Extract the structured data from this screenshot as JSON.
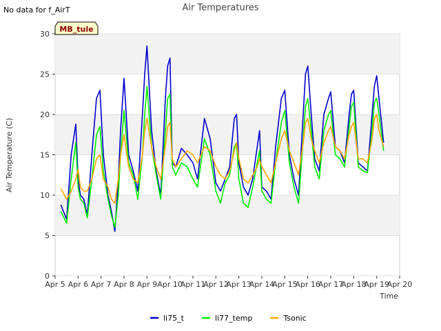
{
  "header": {
    "no_data_text": "No data for f_AirT",
    "badge_label": "MB_tule"
  },
  "chart_data": {
    "type": "line",
    "title": "Air Temperatures",
    "xlabel": "Time",
    "ylabel": "Air Temperature (C)",
    "xlim": [
      5,
      20
    ],
    "ylim": [
      0,
      30
    ],
    "x_ticks": [
      5,
      6,
      7,
      8,
      9,
      10,
      11,
      12,
      13,
      14,
      15,
      16,
      17,
      18,
      19,
      20
    ],
    "x_tick_labels": [
      "Apr 5",
      "Apr 6",
      "Apr 7",
      "Apr 8",
      "Apr 9",
      "Apr 10",
      "Apr 11",
      "Apr 12",
      "Apr 13",
      "Apr 14",
      "Apr 15",
      "Apr 16",
      "Apr 17",
      "Apr 18",
      "Apr 19",
      "Apr 20"
    ],
    "y_ticks": [
      0,
      5,
      10,
      15,
      20,
      25,
      30
    ],
    "y_tick_labels": [
      "0",
      "5",
      "10",
      "15",
      "20",
      "25",
      "30"
    ],
    "grid": "horizontal bands",
    "legend_position": "bottom-center",
    "series": [
      {
        "name": "li75_t",
        "color": "#0000cc",
        "x": [
          5.25,
          5.5,
          5.7,
          5.9,
          6.0,
          6.1,
          6.25,
          6.4,
          6.6,
          6.8,
          6.95,
          7.1,
          7.3,
          7.45,
          7.6,
          7.75,
          7.85,
          8.0,
          8.2,
          8.4,
          8.6,
          8.8,
          8.9,
          9.0,
          9.2,
          9.4,
          9.6,
          9.8,
          9.9,
          10.0,
          10.1,
          10.25,
          10.5,
          10.75,
          11.0,
          11.2,
          11.5,
          11.75,
          12.0,
          12.2,
          12.4,
          12.6,
          12.8,
          12.9,
          13.0,
          13.2,
          13.4,
          13.6,
          13.8,
          13.9,
          14.0,
          14.2,
          14.4,
          14.6,
          14.85,
          15.0,
          15.2,
          15.4,
          15.6,
          15.8,
          15.9,
          16.0,
          16.15,
          16.3,
          16.5,
          16.7,
          16.9,
          17.0,
          17.2,
          17.4,
          17.6,
          17.8,
          17.9,
          18.0,
          18.2,
          18.4,
          18.6,
          18.8,
          18.9,
          19.0,
          19.1,
          19.3
        ],
        "y": [
          8.8,
          7.0,
          15.0,
          18.8,
          12.0,
          10.0,
          9.5,
          7.5,
          15.0,
          22.0,
          23.0,
          15.0,
          10.0,
          8.0,
          5.5,
          12.0,
          18.0,
          24.5,
          15.0,
          13.0,
          10.5,
          20.0,
          25.0,
          28.5,
          18.0,
          13.0,
          10.0,
          22.0,
          26.0,
          27.0,
          14.0,
          13.5,
          15.8,
          15.0,
          14.0,
          12.0,
          19.5,
          17.0,
          11.5,
          10.5,
          12.0,
          13.5,
          19.5,
          20.0,
          14.0,
          11.0,
          10.0,
          12.0,
          16.0,
          18.0,
          11.0,
          10.5,
          9.5,
          16.0,
          22.0,
          23.0,
          15.0,
          12.0,
          10.0,
          20.0,
          25.0,
          26.0,
          20.0,
          14.5,
          13.0,
          20.0,
          22.0,
          22.8,
          16.0,
          15.5,
          14.0,
          20.0,
          22.5,
          23.0,
          14.0,
          13.5,
          13.0,
          20.0,
          23.5,
          24.8,
          22.0,
          16.5
        ]
      },
      {
        "name": "li77_temp",
        "color": "#00ee00",
        "x": [
          5.25,
          5.5,
          5.7,
          5.9,
          6.0,
          6.1,
          6.25,
          6.4,
          6.6,
          6.8,
          6.95,
          7.1,
          7.3,
          7.45,
          7.6,
          7.75,
          7.85,
          8.0,
          8.2,
          8.4,
          8.6,
          8.8,
          8.9,
          9.0,
          9.2,
          9.4,
          9.6,
          9.8,
          9.9,
          10.0,
          10.1,
          10.25,
          10.5,
          10.75,
          11.0,
          11.2,
          11.5,
          11.75,
          12.0,
          12.2,
          12.4,
          12.6,
          12.8,
          12.9,
          13.0,
          13.2,
          13.4,
          13.6,
          13.8,
          13.9,
          14.0,
          14.2,
          14.4,
          14.6,
          14.85,
          15.0,
          15.2,
          15.4,
          15.6,
          15.8,
          15.9,
          16.0,
          16.15,
          16.3,
          16.5,
          16.7,
          16.9,
          17.0,
          17.2,
          17.4,
          17.6,
          17.8,
          17.9,
          18.0,
          18.2,
          18.4,
          18.6,
          18.8,
          18.9,
          19.0,
          19.1,
          19.3
        ],
        "y": [
          8.0,
          6.5,
          12.0,
          16.5,
          11.0,
          9.5,
          9.0,
          7.2,
          12.0,
          17.5,
          18.5,
          13.0,
          9.5,
          7.5,
          6.0,
          10.0,
          15.0,
          20.5,
          14.0,
          12.5,
          9.5,
          15.0,
          20.0,
          23.5,
          16.0,
          12.5,
          9.5,
          18.0,
          22.0,
          22.5,
          13.5,
          12.5,
          14.0,
          13.5,
          12.0,
          11.0,
          17.0,
          15.0,
          10.5,
          9.0,
          11.5,
          12.5,
          16.0,
          16.5,
          12.0,
          9.0,
          8.5,
          11.0,
          14.0,
          15.5,
          10.5,
          9.5,
          9.0,
          14.0,
          19.0,
          20.5,
          14.0,
          11.0,
          9.0,
          17.0,
          21.0,
          22.0,
          18.0,
          13.5,
          12.0,
          18.0,
          20.0,
          20.5,
          15.0,
          14.5,
          13.5,
          18.5,
          21.0,
          21.5,
          13.5,
          13.0,
          12.8,
          18.0,
          21.5,
          22.0,
          20.0,
          15.5
        ]
      },
      {
        "name": "Tsonic",
        "color": "#ffa500",
        "x": [
          5.25,
          5.5,
          5.7,
          5.9,
          6.0,
          6.1,
          6.25,
          6.4,
          6.6,
          6.8,
          6.95,
          7.1,
          7.3,
          7.45,
          7.6,
          7.75,
          7.85,
          8.0,
          8.2,
          8.4,
          8.6,
          8.8,
          8.9,
          9.0,
          9.2,
          9.4,
          9.6,
          9.8,
          9.9,
          10.0,
          10.1,
          10.25,
          10.5,
          10.75,
          11.0,
          11.2,
          11.5,
          11.75,
          12.0,
          12.2,
          12.4,
          12.6,
          12.8,
          12.9,
          13.0,
          13.2,
          13.4,
          13.6,
          13.8,
          13.9,
          14.0,
          14.2,
          14.4,
          14.6,
          14.85,
          15.0,
          15.2,
          15.4,
          15.6,
          15.8,
          15.9,
          16.0,
          16.15,
          16.3,
          16.5,
          16.7,
          16.9,
          17.0,
          17.2,
          17.4,
          17.6,
          17.8,
          17.9,
          18.0,
          18.2,
          18.4,
          18.6,
          18.8,
          18.9,
          19.0,
          19.1,
          19.3
        ],
        "y": [
          10.8,
          9.5,
          10.5,
          12.0,
          13.2,
          11.0,
          10.5,
          10.5,
          12.0,
          14.5,
          15.0,
          12.0,
          11.0,
          9.5,
          9.0,
          12.0,
          15.0,
          17.5,
          13.5,
          12.0,
          11.5,
          15.0,
          18.0,
          19.5,
          16.0,
          13.5,
          12.0,
          16.0,
          18.5,
          19.0,
          14.5,
          13.5,
          14.5,
          15.5,
          15.0,
          14.0,
          16.0,
          15.5,
          13.5,
          12.5,
          12.0,
          13.0,
          15.5,
          16.5,
          14.5,
          12.0,
          11.5,
          12.5,
          13.5,
          14.5,
          13.5,
          12.5,
          11.5,
          14.0,
          17.0,
          18.0,
          15.5,
          14.0,
          12.5,
          16.5,
          19.0,
          19.5,
          17.0,
          15.5,
          14.0,
          16.5,
          18.0,
          18.5,
          16.0,
          15.5,
          14.5,
          17.5,
          18.5,
          19.0,
          14.5,
          14.5,
          14.0,
          17.0,
          19.5,
          20.0,
          18.0,
          16.0
        ]
      }
    ]
  }
}
